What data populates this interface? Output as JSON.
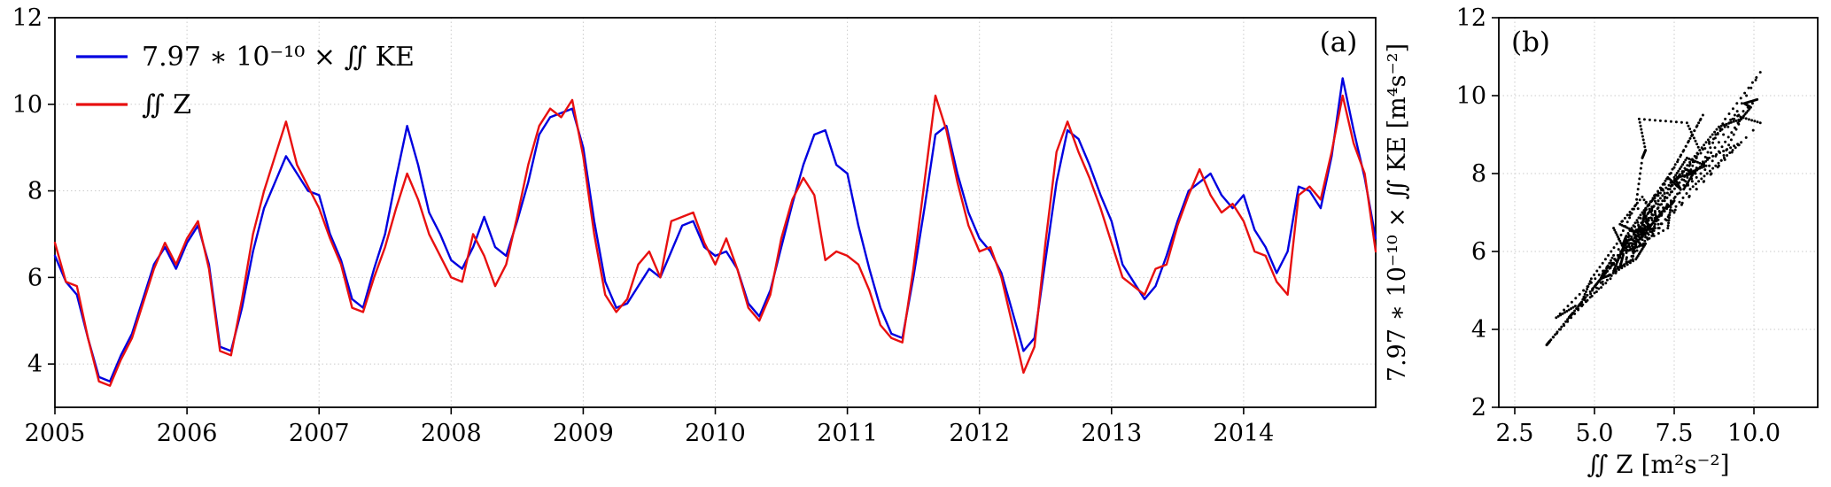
{
  "figure": {
    "background": "#ffffff",
    "panel_labels": [
      "(a)",
      "(b)"
    ]
  },
  "chart_data": [
    {
      "type": "line",
      "panel_label": "(a)",
      "title": "",
      "xlabel": "",
      "ylabel": "",
      "x_start": 2005,
      "x_step_years": 0.0833333,
      "xlim": [
        2005,
        2015
      ],
      "ylim": [
        3,
        12
      ],
      "xticks": [
        2005,
        2006,
        2007,
        2008,
        2009,
        2010,
        2011,
        2012,
        2013,
        2014
      ],
      "xtick_labels": [
        "2005",
        "2006",
        "2007",
        "2008",
        "2009",
        "2010",
        "2011",
        "2012",
        "2013",
        "2014"
      ],
      "yticks": [
        4,
        6,
        8,
        10,
        12
      ],
      "ytick_labels": [
        "4",
        "6",
        "8",
        "10",
        "12"
      ],
      "grid": true,
      "legend_position": "upper-left",
      "series": [
        {
          "name": "7.97 ∗ 10⁻¹⁰ × ∬ KE",
          "color": "#0000e0",
          "values": [
            6.5,
            5.9,
            5.6,
            4.6,
            3.7,
            3.6,
            4.2,
            4.7,
            5.5,
            6.3,
            6.7,
            6.2,
            6.8,
            7.2,
            6.3,
            4.4,
            4.3,
            5.3,
            6.6,
            7.6,
            8.2,
            8.8,
            8.4,
            8.0,
            7.9,
            7.0,
            6.4,
            5.5,
            5.3,
            6.2,
            7.0,
            8.3,
            9.5,
            8.6,
            7.5,
            7.0,
            6.4,
            6.2,
            6.7,
            7.4,
            6.7,
            6.5,
            7.3,
            8.2,
            9.3,
            9.7,
            9.8,
            9.9,
            9.0,
            7.3,
            5.9,
            5.3,
            5.4,
            5.8,
            6.2,
            6.0,
            6.6,
            7.2,
            7.3,
            6.7,
            6.5,
            6.6,
            6.2,
            5.4,
            5.1,
            5.7,
            6.7,
            7.7,
            8.6,
            9.3,
            9.4,
            8.6,
            8.4,
            7.2,
            6.2,
            5.3,
            4.7,
            4.6,
            6.0,
            7.6,
            9.3,
            9.5,
            8.4,
            7.5,
            6.9,
            6.6,
            6.1,
            5.2,
            4.3,
            4.6,
            6.4,
            8.2,
            9.4,
            9.2,
            8.6,
            7.9,
            7.3,
            6.3,
            5.9,
            5.5,
            5.8,
            6.5,
            7.3,
            8.0,
            8.2,
            8.4,
            7.9,
            7.6,
            7.9,
            7.1,
            6.7,
            6.1,
            6.6,
            8.1,
            8.0,
            7.6,
            8.8,
            10.6,
            9.4,
            8.3,
            6.9
          ]
        },
        {
          "name": "∬ Z",
          "color": "#e81010",
          "values": [
            6.8,
            5.9,
            5.8,
            4.6,
            3.6,
            3.5,
            4.1,
            4.6,
            5.4,
            6.2,
            6.8,
            6.3,
            6.9,
            7.3,
            6.2,
            4.3,
            4.2,
            5.5,
            7.0,
            8.0,
            8.8,
            9.6,
            8.6,
            8.1,
            7.6,
            6.9,
            6.3,
            5.3,
            5.2,
            6.0,
            6.7,
            7.6,
            8.4,
            7.8,
            7.0,
            6.5,
            6.0,
            5.9,
            7.0,
            6.5,
            5.8,
            6.3,
            7.4,
            8.6,
            9.5,
            9.9,
            9.7,
            10.1,
            8.8,
            7.0,
            5.6,
            5.2,
            5.5,
            6.3,
            6.6,
            6.0,
            7.3,
            7.4,
            7.5,
            6.8,
            6.3,
            6.9,
            6.2,
            5.3,
            5.0,
            5.6,
            6.9,
            7.8,
            8.3,
            7.9,
            6.4,
            6.6,
            6.5,
            6.3,
            5.7,
            4.9,
            4.6,
            4.5,
            6.2,
            8.2,
            10.2,
            9.4,
            8.2,
            7.2,
            6.6,
            6.7,
            6.0,
            4.9,
            3.8,
            4.4,
            6.8,
            8.9,
            9.6,
            8.9,
            8.3,
            7.6,
            6.8,
            6.0,
            5.8,
            5.6,
            6.2,
            6.3,
            7.2,
            7.9,
            8.5,
            7.9,
            7.5,
            7.7,
            7.3,
            6.6,
            6.5,
            5.9,
            5.6,
            7.9,
            8.1,
            7.8,
            8.9,
            10.2,
            9.1,
            8.4,
            6.6
          ]
        }
      ]
    },
    {
      "type": "scatter",
      "panel_label": "(b)",
      "title": "",
      "xlabel": "∬ Z   [m²s⁻²]",
      "ylabel": "7.97 ∗ 10⁻¹⁰ × ∬ KE   [m⁴s⁻²]",
      "xlim": [
        2,
        12
      ],
      "ylim": [
        2,
        12
      ],
      "xticks": [
        2.5,
        5.0,
        7.5,
        10.0
      ],
      "xtick_labels": [
        "2.5",
        "5.0",
        "7.5",
        "10.0"
      ],
      "yticks": [
        2,
        4,
        6,
        8,
        10,
        12
      ],
      "ytick_labels": [
        "2",
        "4",
        "6",
        "8",
        "10",
        "12"
      ],
      "grid": true,
      "marker": "dot",
      "color": "#000000",
      "points_source": "pairs (x = ∬Z, y = 7.97∗10⁻¹⁰×∬KE) taken from the two time series of panel (a)"
    }
  ]
}
